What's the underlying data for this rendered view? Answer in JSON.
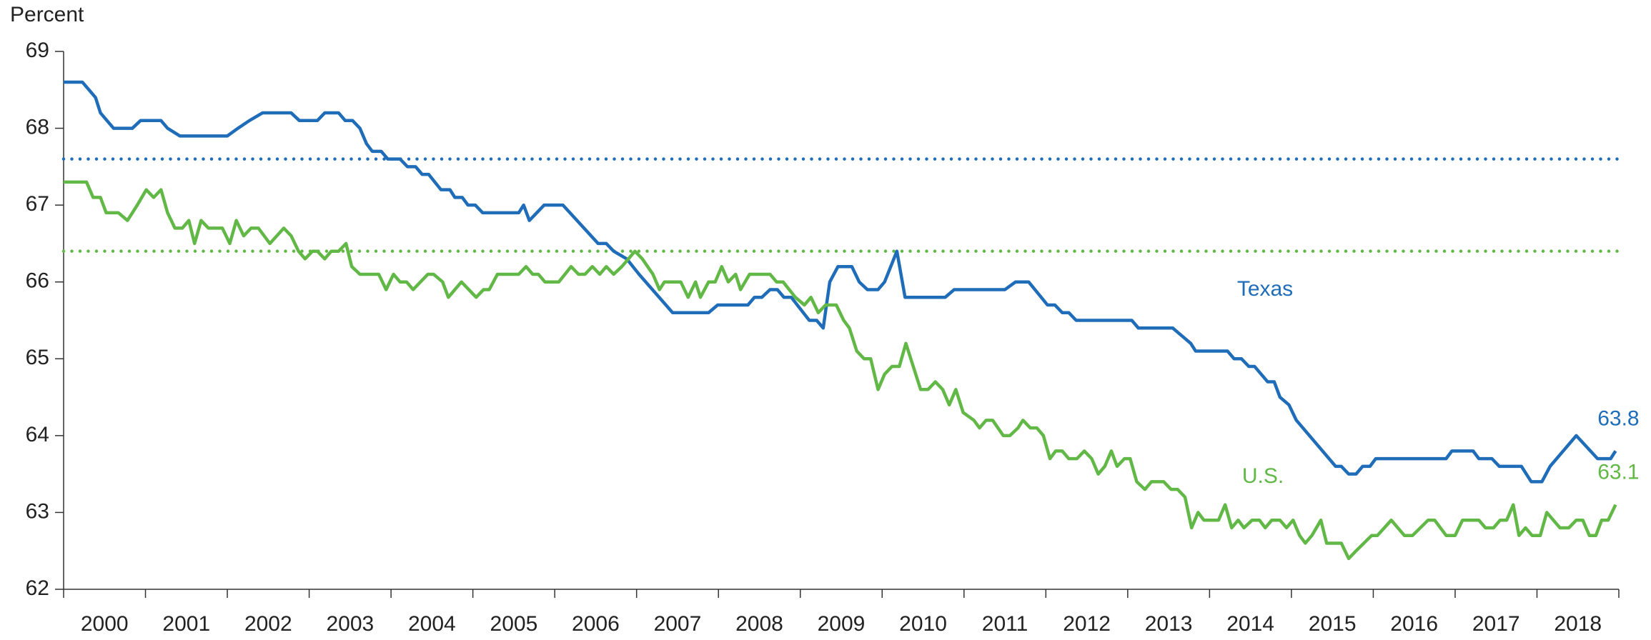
{
  "chart_data": {
    "type": "line",
    "y_label": "Percent",
    "xlim": [
      2000,
      2019
    ],
    "xticks": [
      {
        "value": 2000.5,
        "label": "2000"
      },
      {
        "value": 2001.5,
        "label": "2001"
      },
      {
        "value": 2002.5,
        "label": "2002"
      },
      {
        "value": 2003.5,
        "label": "2003"
      },
      {
        "value": 2004.5,
        "label": "2004"
      },
      {
        "value": 2005.5,
        "label": "2005"
      },
      {
        "value": 2006.5,
        "label": "2006"
      },
      {
        "value": 2007.5,
        "label": "2007"
      },
      {
        "value": 2008.5,
        "label": "2008"
      },
      {
        "value": 2009.5,
        "label": "2009"
      },
      {
        "value": 2010.5,
        "label": "2010"
      },
      {
        "value": 2011.5,
        "label": "2011"
      },
      {
        "value": 2012.5,
        "label": "2012"
      },
      {
        "value": 2013.5,
        "label": "2013"
      },
      {
        "value": 2014.5,
        "label": "2014"
      },
      {
        "value": 2015.5,
        "label": "2015"
      },
      {
        "value": 2016.5,
        "label": "2016"
      },
      {
        "value": 2017.5,
        "label": "2017"
      },
      {
        "value": 2018.5,
        "label": "2018"
      }
    ],
    "xtick_marks": [
      2000,
      2001,
      2002,
      2003,
      2004,
      2005,
      2006,
      2007,
      2008,
      2009,
      2010,
      2011,
      2012,
      2013,
      2014,
      2015,
      2016,
      2017,
      2018,
      2019
    ],
    "ylim": [
      62,
      69
    ],
    "yticks": [
      62,
      63,
      64,
      65,
      66,
      67,
      68,
      69
    ],
    "grid": false,
    "series": [
      {
        "name": "Texas",
        "color": "#1f6db8",
        "end_label": "63.8",
        "x": [
          2000.0,
          2000.23,
          2000.39,
          2000.45,
          2000.61,
          2000.84,
          2000.94,
          2001.19,
          2001.27,
          2001.42,
          2002.0,
          2002.13,
          2002.27,
          2002.43,
          2002.78,
          2002.88,
          2003.1,
          2003.19,
          2003.36,
          2003.44,
          2003.53,
          2003.62,
          2003.7,
          2003.77,
          2003.88,
          2003.96,
          2004.11,
          2004.2,
          2004.3,
          2004.38,
          2004.46,
          2004.61,
          2004.72,
          2004.78,
          2004.87,
          2004.94,
          2005.03,
          2005.12,
          2005.56,
          2005.62,
          2005.69,
          2005.87,
          2006.1,
          2006.53,
          2006.63,
          2006.72,
          2006.88,
          2007.03,
          2007.44,
          2007.88,
          2007.99,
          2008.36,
          2008.44,
          2008.53,
          2008.63,
          2008.72,
          2008.8,
          2008.89,
          2009.11,
          2009.2,
          2009.28,
          2009.36,
          2009.46,
          2009.63,
          2009.72,
          2009.82,
          2009.95,
          2010.03,
          2010.18,
          2010.28,
          2010.77,
          2010.88,
          2011.5,
          2011.63,
          2011.79,
          2012.02,
          2012.11,
          2012.2,
          2012.28,
          2012.37,
          2013.05,
          2013.13,
          2013.55,
          2013.77,
          2013.83,
          2014.22,
          2014.3,
          2014.39,
          2014.48,
          2014.55,
          2014.71,
          2014.79,
          2014.86,
          2014.97,
          2015.06,
          2015.54,
          2015.61,
          2015.7,
          2015.79,
          2015.87,
          2015.96,
          2016.03,
          2016.89,
          2016.96,
          2017.22,
          2017.29,
          2017.45,
          2017.54,
          2017.81,
          2017.93,
          2018.06,
          2018.16,
          2018.48,
          2018.74,
          2018.9,
          2018.96
        ],
        "values": [
          68.6,
          68.6,
          68.4,
          68.2,
          68.0,
          68.0,
          68.1,
          68.1,
          68.0,
          67.9,
          67.9,
          68.0,
          68.1,
          68.2,
          68.2,
          68.1,
          68.1,
          68.2,
          68.2,
          68.1,
          68.1,
          68.0,
          67.8,
          67.7,
          67.7,
          67.6,
          67.6,
          67.5,
          67.5,
          67.4,
          67.4,
          67.2,
          67.2,
          67.1,
          67.1,
          67.0,
          67.0,
          66.9,
          66.9,
          67.0,
          66.8,
          67.0,
          67.0,
          66.5,
          66.5,
          66.4,
          66.3,
          66.1,
          65.6,
          65.6,
          65.7,
          65.7,
          65.8,
          65.8,
          65.9,
          65.9,
          65.8,
          65.8,
          65.5,
          65.5,
          65.4,
          66.0,
          66.2,
          66.2,
          66.0,
          65.9,
          65.9,
          66.0,
          66.4,
          65.8,
          65.8,
          65.9,
          65.9,
          66.0,
          66.0,
          65.7,
          65.7,
          65.6,
          65.6,
          65.5,
          65.5,
          65.4,
          65.4,
          65.2,
          65.1,
          65.1,
          65.0,
          65.0,
          64.9,
          64.9,
          64.7,
          64.7,
          64.5,
          64.4,
          64.2,
          63.6,
          63.6,
          63.5,
          63.5,
          63.6,
          63.6,
          63.7,
          63.7,
          63.8,
          63.8,
          63.7,
          63.7,
          63.6,
          63.6,
          63.4,
          63.4,
          63.6,
          64.0,
          63.7,
          63.7,
          63.8
        ]
      },
      {
        "name": "U.S.",
        "color": "#62b846",
        "end_label": "63.1",
        "x": [
          2000.0,
          2000.28,
          2000.36,
          2000.45,
          2000.52,
          2000.67,
          2000.78,
          2000.9,
          2001.01,
          2001.1,
          2001.19,
          2001.27,
          2001.36,
          2001.45,
          2001.53,
          2001.6,
          2001.68,
          2001.77,
          2001.94,
          2002.03,
          2002.11,
          2002.2,
          2002.29,
          2002.38,
          2002.52,
          2002.69,
          2002.78,
          2002.87,
          2002.95,
          2003.04,
          2003.1,
          2003.19,
          2003.27,
          2003.36,
          2003.45,
          2003.52,
          2003.62,
          2003.85,
          2003.94,
          2004.03,
          2004.11,
          2004.19,
          2004.27,
          2004.45,
          2004.52,
          2004.63,
          2004.7,
          2004.86,
          2005.04,
          2005.13,
          2005.2,
          2005.3,
          2005.56,
          2005.65,
          2005.73,
          2005.8,
          2005.88,
          2006.05,
          2006.2,
          2006.29,
          2006.37,
          2006.46,
          2006.55,
          2006.63,
          2006.72,
          2006.82,
          2006.98,
          2007.07,
          2007.2,
          2007.28,
          2007.34,
          2007.54,
          2007.63,
          2007.72,
          2007.78,
          2007.88,
          2007.96,
          2008.04,
          2008.12,
          2008.21,
          2008.27,
          2008.38,
          2008.63,
          2008.71,
          2008.79,
          2008.94,
          2009.05,
          2009.13,
          2009.22,
          2009.31,
          2009.44,
          2009.53,
          2009.6,
          2009.69,
          2009.78,
          2009.86,
          2009.95,
          2010.03,
          2010.12,
          2010.21,
          2010.29,
          2010.47,
          2010.56,
          2010.65,
          2010.74,
          2010.82,
          2010.9,
          2010.99,
          2011.12,
          2011.19,
          2011.27,
          2011.35,
          2011.48,
          2011.56,
          2011.66,
          2011.72,
          2011.81,
          2011.89,
          2011.97,
          2012.05,
          2012.12,
          2012.2,
          2012.28,
          2012.38,
          2012.47,
          2012.56,
          2012.64,
          2012.72,
          2012.8,
          2012.87,
          2012.96,
          2013.03,
          2013.11,
          2013.21,
          2013.29,
          2013.44,
          2013.53,
          2013.61,
          2013.7,
          2013.78,
          2013.86,
          2013.93,
          2014.11,
          2014.19,
          2014.27,
          2014.35,
          2014.42,
          2014.52,
          2014.61,
          2014.68,
          2014.76,
          2014.86,
          2014.94,
          2015.02,
          2015.1,
          2015.17,
          2015.25,
          2015.36,
          2015.43,
          2015.61,
          2015.7,
          2015.79,
          2015.98,
          2016.05,
          2016.22,
          2016.38,
          2016.48,
          2016.67,
          2016.75,
          2016.89,
          2017.0,
          2017.09,
          2017.29,
          2017.37,
          2017.47,
          2017.55,
          2017.63,
          2017.71,
          2017.78,
          2017.86,
          2017.94,
          2018.04,
          2018.12,
          2018.28,
          2018.39,
          2018.48,
          2018.56,
          2018.64,
          2018.72,
          2018.79,
          2018.87,
          2018.96
        ],
        "values": [
          67.3,
          67.3,
          67.1,
          67.1,
          66.9,
          66.9,
          66.8,
          67.0,
          67.2,
          67.1,
          67.2,
          66.9,
          66.7,
          66.7,
          66.8,
          66.5,
          66.8,
          66.7,
          66.7,
          66.5,
          66.8,
          66.6,
          66.7,
          66.7,
          66.5,
          66.7,
          66.6,
          66.4,
          66.3,
          66.4,
          66.4,
          66.3,
          66.4,
          66.4,
          66.5,
          66.2,
          66.1,
          66.1,
          65.9,
          66.1,
          66.0,
          66.0,
          65.9,
          66.1,
          66.1,
          66.0,
          65.8,
          66.0,
          65.8,
          65.9,
          65.9,
          66.1,
          66.1,
          66.2,
          66.1,
          66.1,
          66.0,
          66.0,
          66.2,
          66.1,
          66.1,
          66.2,
          66.1,
          66.2,
          66.1,
          66.2,
          66.4,
          66.3,
          66.1,
          65.9,
          66.0,
          66.0,
          65.8,
          66.0,
          65.8,
          66.0,
          66.0,
          66.2,
          66.0,
          66.1,
          65.9,
          66.1,
          66.1,
          66.0,
          66.0,
          65.8,
          65.7,
          65.8,
          65.6,
          65.7,
          65.7,
          65.5,
          65.4,
          65.1,
          65.0,
          65.0,
          64.6,
          64.8,
          64.9,
          64.9,
          65.2,
          64.6,
          64.6,
          64.7,
          64.6,
          64.4,
          64.6,
          64.3,
          64.2,
          64.1,
          64.2,
          64.2,
          64.0,
          64.0,
          64.1,
          64.2,
          64.1,
          64.1,
          64.0,
          63.7,
          63.8,
          63.8,
          63.7,
          63.7,
          63.8,
          63.7,
          63.5,
          63.6,
          63.8,
          63.6,
          63.7,
          63.7,
          63.4,
          63.3,
          63.4,
          63.4,
          63.3,
          63.3,
          63.2,
          62.8,
          63.0,
          62.9,
          62.9,
          63.1,
          62.8,
          62.9,
          62.8,
          62.9,
          62.9,
          62.8,
          62.9,
          62.9,
          62.8,
          62.9,
          62.7,
          62.6,
          62.7,
          62.9,
          62.6,
          62.6,
          62.4,
          62.5,
          62.7,
          62.7,
          62.9,
          62.7,
          62.7,
          62.9,
          62.9,
          62.7,
          62.7,
          62.9,
          62.9,
          62.8,
          62.8,
          62.9,
          62.9,
          63.1,
          62.7,
          62.8,
          62.7,
          62.7,
          63.0,
          62.8,
          62.8,
          62.9,
          62.9,
          62.7,
          62.7,
          62.9,
          62.9,
          63.1
        ]
      }
    ],
    "reference_lines": [
      {
        "value": 67.6,
        "color": "#1f6db8"
      },
      {
        "value": 66.4,
        "color": "#62b846"
      }
    ]
  }
}
